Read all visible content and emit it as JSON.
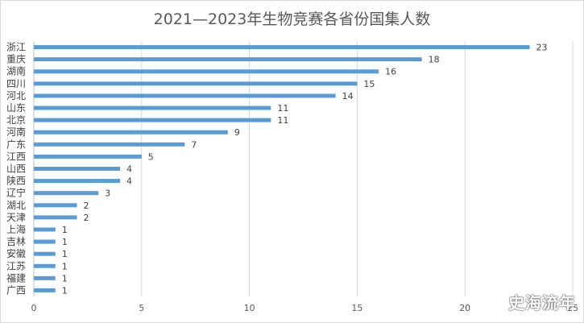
{
  "chart_data": {
    "type": "bar",
    "orientation": "horizontal",
    "title": "2021—2023年生物竞赛各省份国集人数",
    "categories": [
      "浙江",
      "重庆",
      "湖南",
      "四川",
      "河北",
      "山东",
      "北京",
      "河南",
      "广东",
      "江西",
      "山西",
      "陕西",
      "辽宁",
      "湖北",
      "天津",
      "上海",
      "吉林",
      "安徽",
      "江苏",
      "福建",
      "广西"
    ],
    "values": [
      23,
      18,
      16,
      15,
      14,
      11,
      11,
      9,
      7,
      5,
      4,
      4,
      3,
      2,
      2,
      1,
      1,
      1,
      1,
      1,
      1
    ],
    "xlim": [
      0,
      25
    ],
    "xticks": [
      0,
      5,
      10,
      15,
      20,
      25
    ],
    "grid": true,
    "data_labels": true,
    "bar_color": "#5B9BD5",
    "legend": "none"
  },
  "watermark": "史海流年"
}
